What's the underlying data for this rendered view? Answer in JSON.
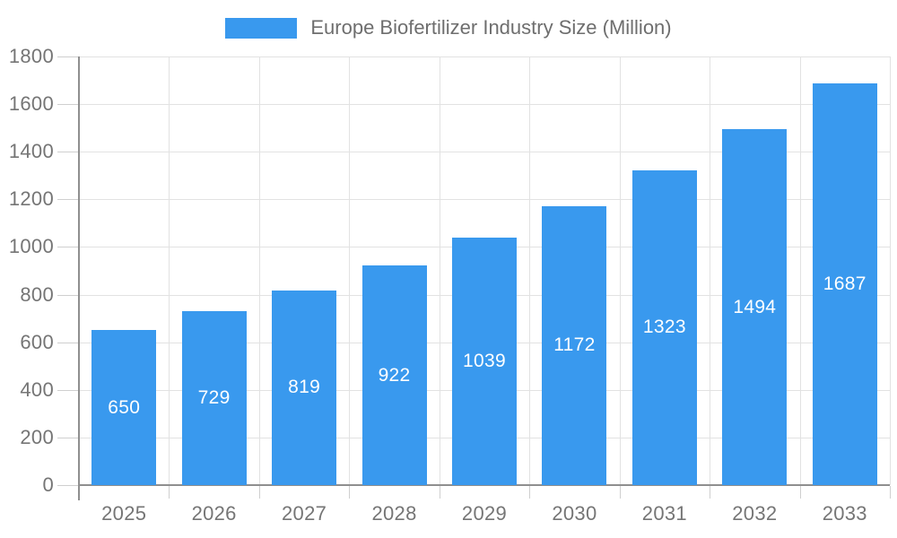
{
  "legend": {
    "series_label": "Europe Biofertilizer Industry Size (Million)"
  },
  "chart_data": {
    "type": "bar",
    "title": "Europe Biofertilizer Industry Size (Million)",
    "categories": [
      "2025",
      "2026",
      "2027",
      "2028",
      "2029",
      "2030",
      "2031",
      "2032",
      "2033"
    ],
    "values": [
      650,
      729,
      819,
      922,
      1039,
      1172,
      1323,
      1494,
      1687
    ],
    "xlabel": "",
    "ylabel": "",
    "ylim": [
      0,
      1800
    ],
    "yticks": [
      0,
      200,
      400,
      600,
      800,
      1000,
      1200,
      1400,
      1600,
      1800
    ],
    "grid": true,
    "legend_position": "top-center",
    "value_labels": "inside-center-white",
    "bar_color": "#3999EE",
    "value_label_color": "#ffffff",
    "axis_text_color": "#757575",
    "title_text_color": "#6e6e6e",
    "gridline_color": "#e2e2e2",
    "axis_line_color": "#8f8f8f"
  }
}
